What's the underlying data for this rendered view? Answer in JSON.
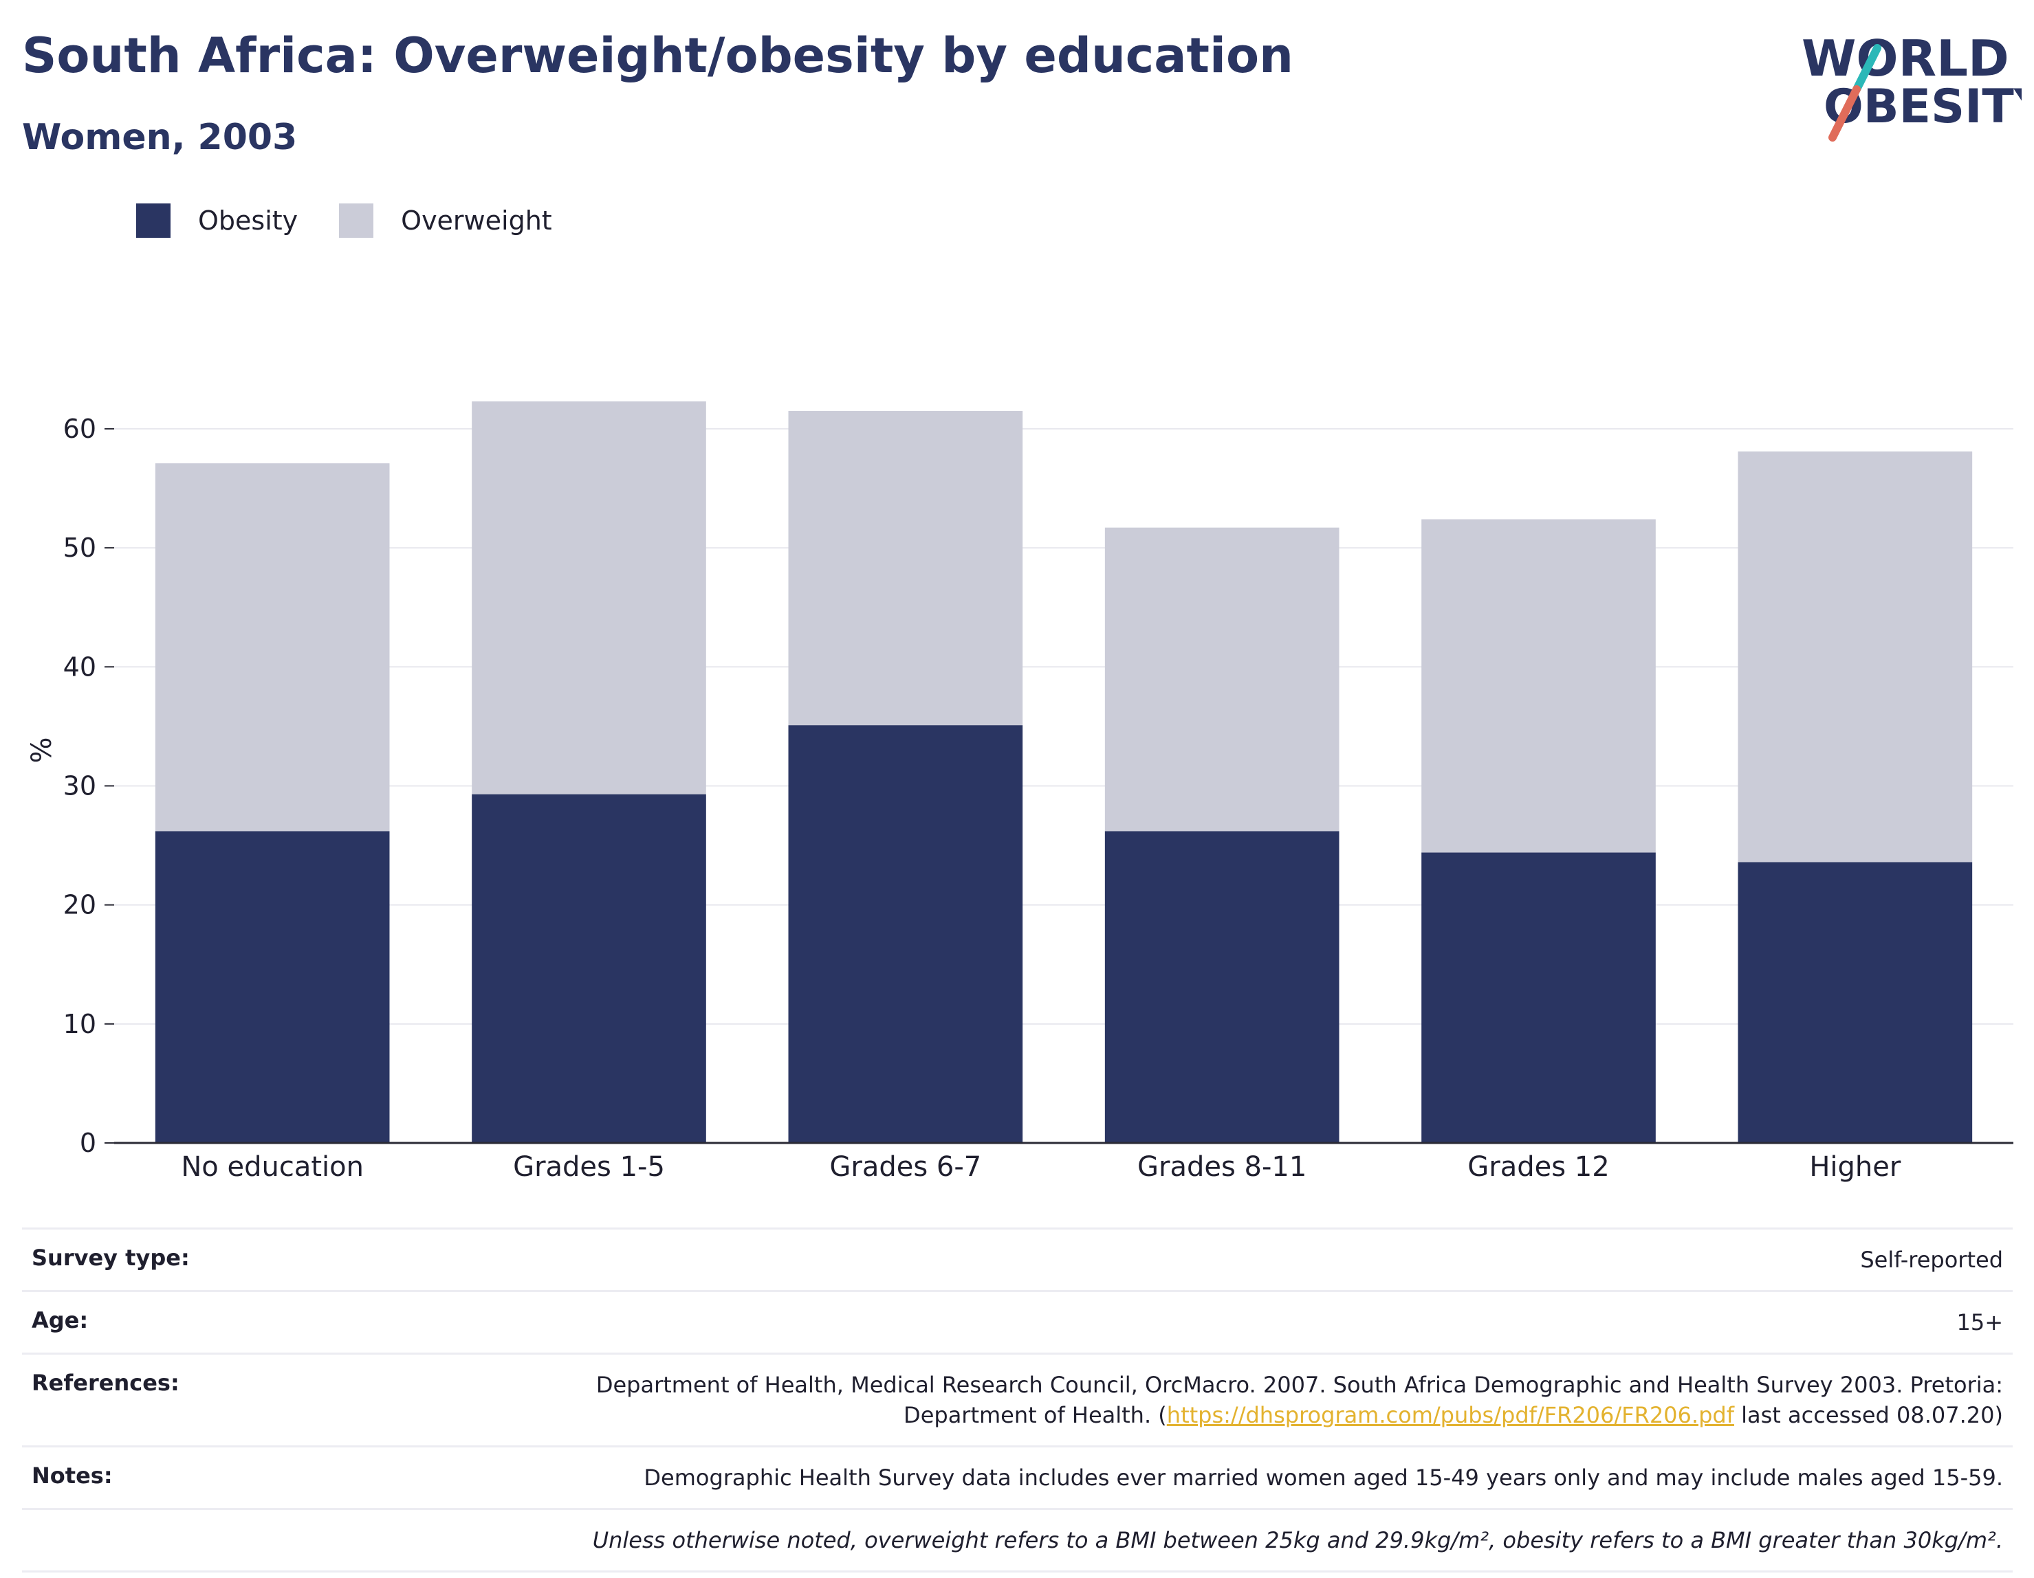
{
  "header": {
    "title": "South Africa: Overweight/obesity by education",
    "subtitle": "Women, 2003"
  },
  "logo": {
    "line1": "WORLD",
    "line2": "OBESITY",
    "colors": {
      "text": "#2a3562",
      "slash_top": "#2bb8b8",
      "slash_bottom": "#e06c5a"
    }
  },
  "legend": [
    {
      "label": "Obesity",
      "color": "#2a3562"
    },
    {
      "label": "Overweight",
      "color": "#cbccd8"
    }
  ],
  "chart_data": {
    "type": "bar",
    "stacked": true,
    "categories": [
      "No education",
      "Grades 1-5",
      "Grades 6-7",
      "Grades 8-11",
      "Grades 12",
      "Higher"
    ],
    "series": [
      {
        "name": "Obesity",
        "color": "#2a3562",
        "values": [
          26.2,
          29.3,
          35.1,
          26.2,
          24.4,
          23.6
        ]
      },
      {
        "name": "Overweight",
        "color": "#cbccd8",
        "values": [
          30.9,
          33.0,
          26.4,
          25.5,
          28.0,
          34.5
        ]
      }
    ],
    "ylabel": "%",
    "ylim": [
      0,
      66
    ],
    "yticks": [
      0,
      10,
      20,
      30,
      40,
      50,
      60
    ],
    "grid": true,
    "legend_position": "top-left"
  },
  "meta": {
    "survey_type": {
      "label": "Survey type:",
      "value": "Self-reported"
    },
    "age": {
      "label": "Age:",
      "value": "15+"
    },
    "references": {
      "label": "References:",
      "line1": "Department of Health, Medical Research Council, OrcMacro. 2007. South Africa Demographic and Health Survey 2003. Pretoria:",
      "line2_prefix": "Department of Health. (",
      "link": "https://dhsprogram.com/pubs/pdf/FR206/FR206.pdf",
      "line2_suffix": " last accessed 08.07.20)"
    },
    "notes": {
      "label": "Notes:",
      "value": "Demographic Health Survey data includes ever married women aged 15-49 years only and may include males aged 15-59."
    },
    "definition": "Unless otherwise noted, overweight refers to a BMI between 25kg and 29.9kg/m², obesity refers to a BMI greater than 30kg/m²."
  }
}
